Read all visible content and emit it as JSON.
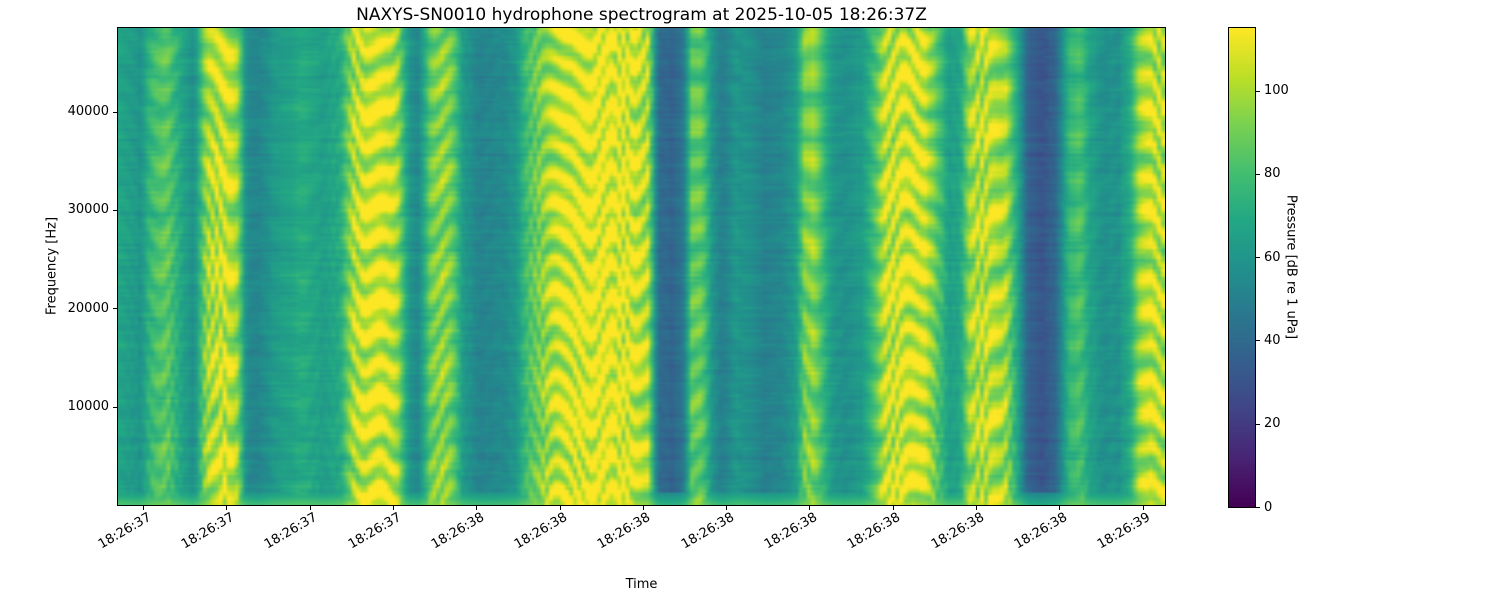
{
  "chart_data": {
    "type": "heatmap",
    "title": "NAXYS-SN0010 hydrophone spectrogram at 2025-10-05 18:26:37Z",
    "xlabel": "Time",
    "ylabel": "Frequency [Hz]",
    "x_tick_labels": [
      "18:26:37",
      "18:26:37",
      "18:26:37",
      "18:26:37",
      "18:26:38",
      "18:26:38",
      "18:26:38",
      "18:26:38",
      "18:26:38",
      "18:26:38",
      "18:26:38",
      "18:26:38",
      "18:26:39"
    ],
    "y_ticks": [
      10000,
      20000,
      30000,
      40000
    ],
    "ylim": [
      0,
      48500
    ],
    "grid": false,
    "colorbar": {
      "label": "Pressure [dB re 1 uPa]",
      "ticks": [
        0,
        20,
        40,
        60,
        80,
        100
      ],
      "vmin": 0,
      "vmax": 115,
      "position": "right"
    },
    "colormap": {
      "name": "viridis",
      "stops": [
        "#440154",
        "#482475",
        "#414487",
        "#355f8d",
        "#2a788e",
        "#21918c",
        "#22a884",
        "#44bf70",
        "#7ad151",
        "#bddf26",
        "#fde725"
      ]
    },
    "time_profile_db": [
      [
        0.0,
        66
      ],
      [
        0.0191,
        60
      ],
      [
        0.0306,
        78
      ],
      [
        0.0449,
        86
      ],
      [
        0.0573,
        70
      ],
      [
        0.0707,
        56
      ],
      [
        0.0831,
        98
      ],
      [
        0.0993,
        106
      ],
      [
        0.1117,
        98
      ],
      [
        0.1213,
        55
      ],
      [
        0.1337,
        52
      ],
      [
        0.1471,
        62
      ],
      [
        0.1738,
        70
      ],
      [
        0.1977,
        64
      ],
      [
        0.212,
        72
      ],
      [
        0.2235,
        102
      ],
      [
        0.2454,
        111
      ],
      [
        0.2646,
        102
      ],
      [
        0.277,
        60
      ],
      [
        0.2865,
        55
      ],
      [
        0.298,
        90
      ],
      [
        0.3104,
        96
      ],
      [
        0.319,
        88
      ],
      [
        0.3286,
        62
      ],
      [
        0.3438,
        52
      ],
      [
        0.3649,
        54
      ],
      [
        0.3792,
        60
      ],
      [
        0.3916,
        82
      ],
      [
        0.4078,
        96
      ],
      [
        0.4202,
        106
      ],
      [
        0.4412,
        112
      ],
      [
        0.4651,
        114
      ],
      [
        0.489,
        110
      ],
      [
        0.5062,
        100
      ],
      [
        0.5157,
        42
      ],
      [
        0.5291,
        38
      ],
      [
        0.5396,
        45
      ],
      [
        0.5482,
        86
      ],
      [
        0.5578,
        88
      ],
      [
        0.5673,
        62
      ],
      [
        0.5769,
        48
      ],
      [
        0.5893,
        60
      ],
      [
        0.6036,
        58
      ],
      [
        0.6179,
        50
      ],
      [
        0.6304,
        52
      ],
      [
        0.6466,
        60
      ],
      [
        0.6562,
        90
      ],
      [
        0.6657,
        94
      ],
      [
        0.6724,
        80
      ],
      [
        0.682,
        62
      ],
      [
        0.6944,
        58
      ],
      [
        0.7106,
        62
      ],
      [
        0.723,
        80
      ],
      [
        0.7326,
        104
      ],
      [
        0.7517,
        108
      ],
      [
        0.7708,
        107
      ],
      [
        0.7832,
        85
      ],
      [
        0.7947,
        64
      ],
      [
        0.8061,
        68
      ],
      [
        0.8157,
        100
      ],
      [
        0.8329,
        104
      ],
      [
        0.8501,
        98
      ],
      [
        0.8596,
        70
      ],
      [
        0.8711,
        35
      ],
      [
        0.8854,
        30
      ],
      [
        0.8978,
        40
      ],
      [
        0.9093,
        75
      ],
      [
        0.9207,
        82
      ],
      [
        0.9303,
        65
      ],
      [
        0.9427,
        58
      ],
      [
        0.957,
        58
      ],
      [
        0.9685,
        70
      ],
      [
        0.978,
        100
      ],
      [
        0.9904,
        106
      ],
      [
        1.0,
        102
      ]
    ]
  }
}
